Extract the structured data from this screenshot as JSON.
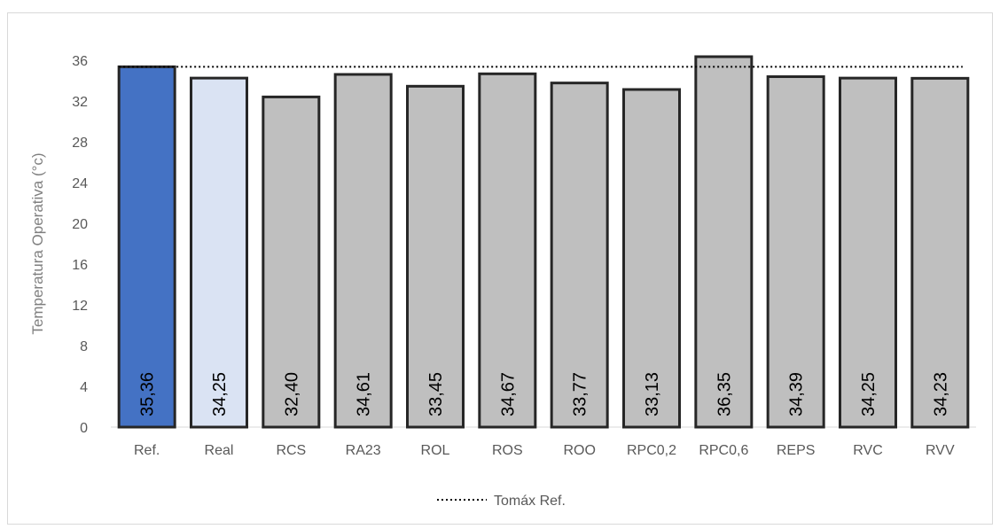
{
  "chart_data": {
    "type": "bar",
    "title": "",
    "xlabel": "",
    "ylabel": "Temperatura Operativa (°c)",
    "ylim": [
      0,
      36
    ],
    "yticks": [
      0,
      4,
      8,
      12,
      16,
      20,
      24,
      28,
      32,
      36
    ],
    "grid": false,
    "legend_position": "bottom",
    "categories": [
      "Ref.",
      "Real",
      "RCS",
      "RA23",
      "ROL",
      "ROS",
      "ROO",
      "RPC0,2",
      "RPC0,6",
      "REPS",
      "RVC",
      "RVV"
    ],
    "values": [
      35.36,
      34.25,
      32.4,
      34.61,
      33.45,
      34.67,
      33.77,
      33.13,
      36.35,
      34.39,
      34.25,
      34.23
    ],
    "data_labels": [
      "35,36",
      "34,25",
      "32,40",
      "34,61",
      "33,45",
      "34,67",
      "33,77",
      "33,13",
      "36,35",
      "34,39",
      "34,25",
      "34,23"
    ],
    "bar_colors": [
      "#4472c4",
      "#dae3f3",
      "#bfbfbf",
      "#bfbfbf",
      "#bfbfbf",
      "#bfbfbf",
      "#bfbfbf",
      "#bfbfbf",
      "#bfbfbf",
      "#bfbfbf",
      "#bfbfbf",
      "#bfbfbf"
    ],
    "bar_outline_color": "#262626",
    "reference_line": {
      "name": "Tomáx Ref.",
      "value": 35.36,
      "style": "dotted",
      "color": "#000000"
    }
  }
}
